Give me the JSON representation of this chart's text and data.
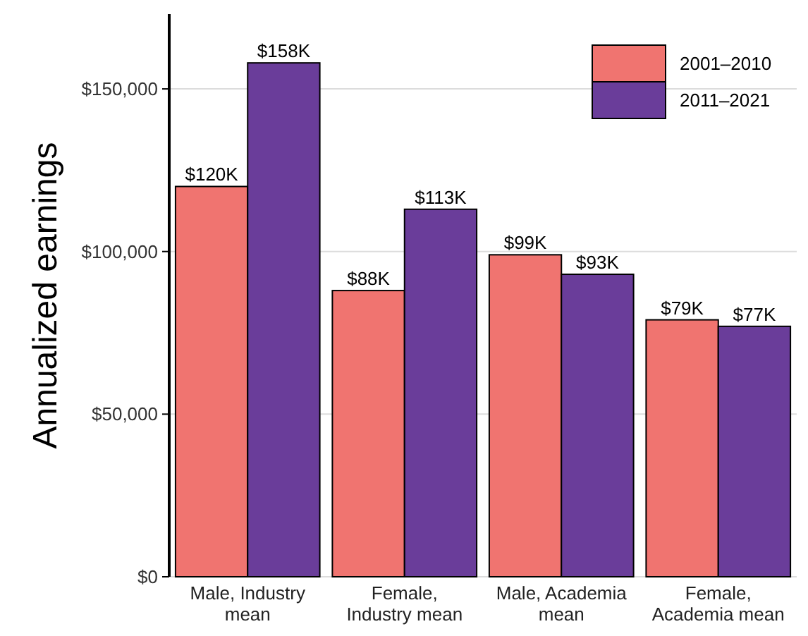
{
  "chart_data": {
    "type": "bar",
    "ylabel": "Annualized earnings",
    "categories": [
      "Male, Industry mean",
      "Female, Industry mean",
      "Male, Academia mean",
      "Female, Academia mean"
    ],
    "series": [
      {
        "name": "2001–2010",
        "color": "#f07470",
        "values": [
          120000,
          88000,
          99000,
          79000
        ],
        "value_labels": [
          "$120K",
          "$88K",
          "$99K",
          "$79K"
        ]
      },
      {
        "name": "2011–2021",
        "color": "#6a3d9a",
        "values": [
          158000,
          113000,
          93000,
          77000
        ],
        "value_labels": [
          "$158K",
          "$113K",
          "$93K",
          "$77K"
        ]
      }
    ],
    "ylim": [
      0,
      173000
    ],
    "yticks": [
      {
        "value": 0,
        "label": "$0"
      },
      {
        "value": 50000,
        "label": "$50,000"
      },
      {
        "value": 100000,
        "label": "$100,000"
      },
      {
        "value": 150000,
        "label": "$150,000"
      }
    ],
    "grid": "y",
    "legend": "top right"
  }
}
